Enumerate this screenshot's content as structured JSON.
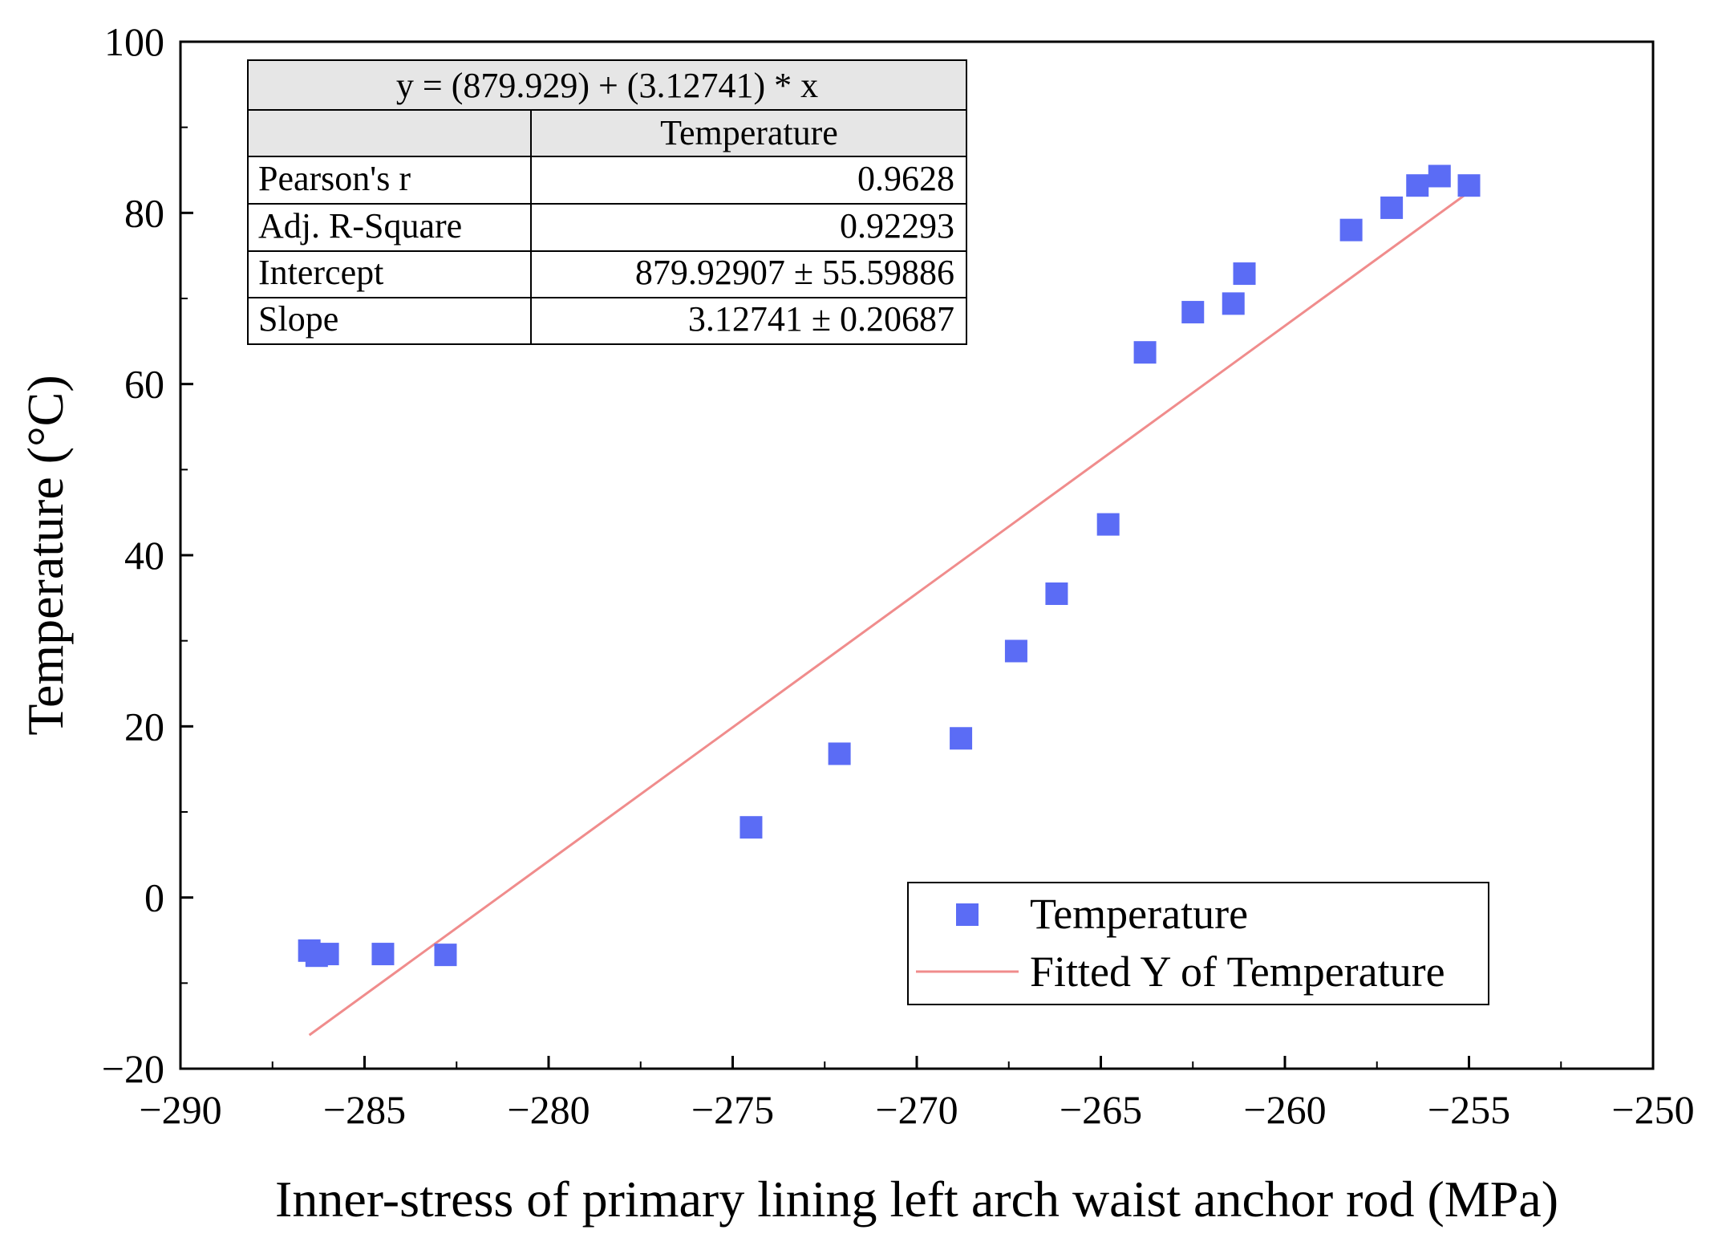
{
  "chart_data": {
    "type": "scatter",
    "title": "",
    "xlabel": "Inner-stress of primary lining left arch waist anchor rod (MPa)",
    "ylabel": "Temperature (°C)",
    "xlim": [
      -290,
      -250
    ],
    "ylim": [
      -20,
      100
    ],
    "x_ticks": [
      -290,
      -285,
      -280,
      -275,
      -270,
      -265,
      -260,
      -255,
      -250
    ],
    "y_ticks": [
      -20,
      0,
      20,
      40,
      60,
      80,
      100
    ],
    "x_tick_labels": [
      "−290",
      "−285",
      "−280",
      "−275",
      "−270",
      "−265",
      "−260",
      "−255",
      "−250"
    ],
    "y_tick_labels": [
      "−20",
      "0",
      "20",
      "40",
      "60",
      "80",
      "100"
    ],
    "series": [
      {
        "name": "Temperature",
        "kind": "scatter",
        "color": "#5b6cf5",
        "points": [
          [
            -286.5,
            -6.2
          ],
          [
            -286.3,
            -6.8
          ],
          [
            -286.0,
            -6.6
          ],
          [
            -284.5,
            -6.6
          ],
          [
            -282.8,
            -6.7
          ],
          [
            -274.5,
            8.2
          ],
          [
            -272.1,
            16.8
          ],
          [
            -268.8,
            18.6
          ],
          [
            -267.3,
            28.8
          ],
          [
            -266.2,
            35.5
          ],
          [
            -264.8,
            43.6
          ],
          [
            -263.8,
            63.7
          ],
          [
            -262.5,
            68.4
          ],
          [
            -261.4,
            69.4
          ],
          [
            -261.1,
            72.9
          ],
          [
            -258.2,
            78.0
          ],
          [
            -257.1,
            80.6
          ],
          [
            -256.4,
            83.2
          ],
          [
            -255.8,
            84.3
          ],
          [
            -255.0,
            83.2
          ]
        ]
      },
      {
        "name": "Fitted Y of Temperature",
        "kind": "line",
        "color": "#f08c8c",
        "intercept": 879.929,
        "slope": 3.12741,
        "x_range": [
          -286.5,
          -255.0
        ]
      }
    ],
    "legend": {
      "position": "bottom-right",
      "entries": [
        "Temperature",
        "Fitted Y of Temperature"
      ]
    },
    "stats_table": {
      "equation": "y = (879.929) + (3.12741) * x",
      "column_header": "Temperature",
      "rows": [
        {
          "label": "Pearson's r",
          "value": "0.9628"
        },
        {
          "label": "Adj. R-Square",
          "value": "0.92293"
        },
        {
          "label": "Intercept",
          "value": "879.92907 ± 55.59886"
        },
        {
          "label": "Slope",
          "value": "3.12741 ± 0.20687"
        }
      ]
    }
  }
}
